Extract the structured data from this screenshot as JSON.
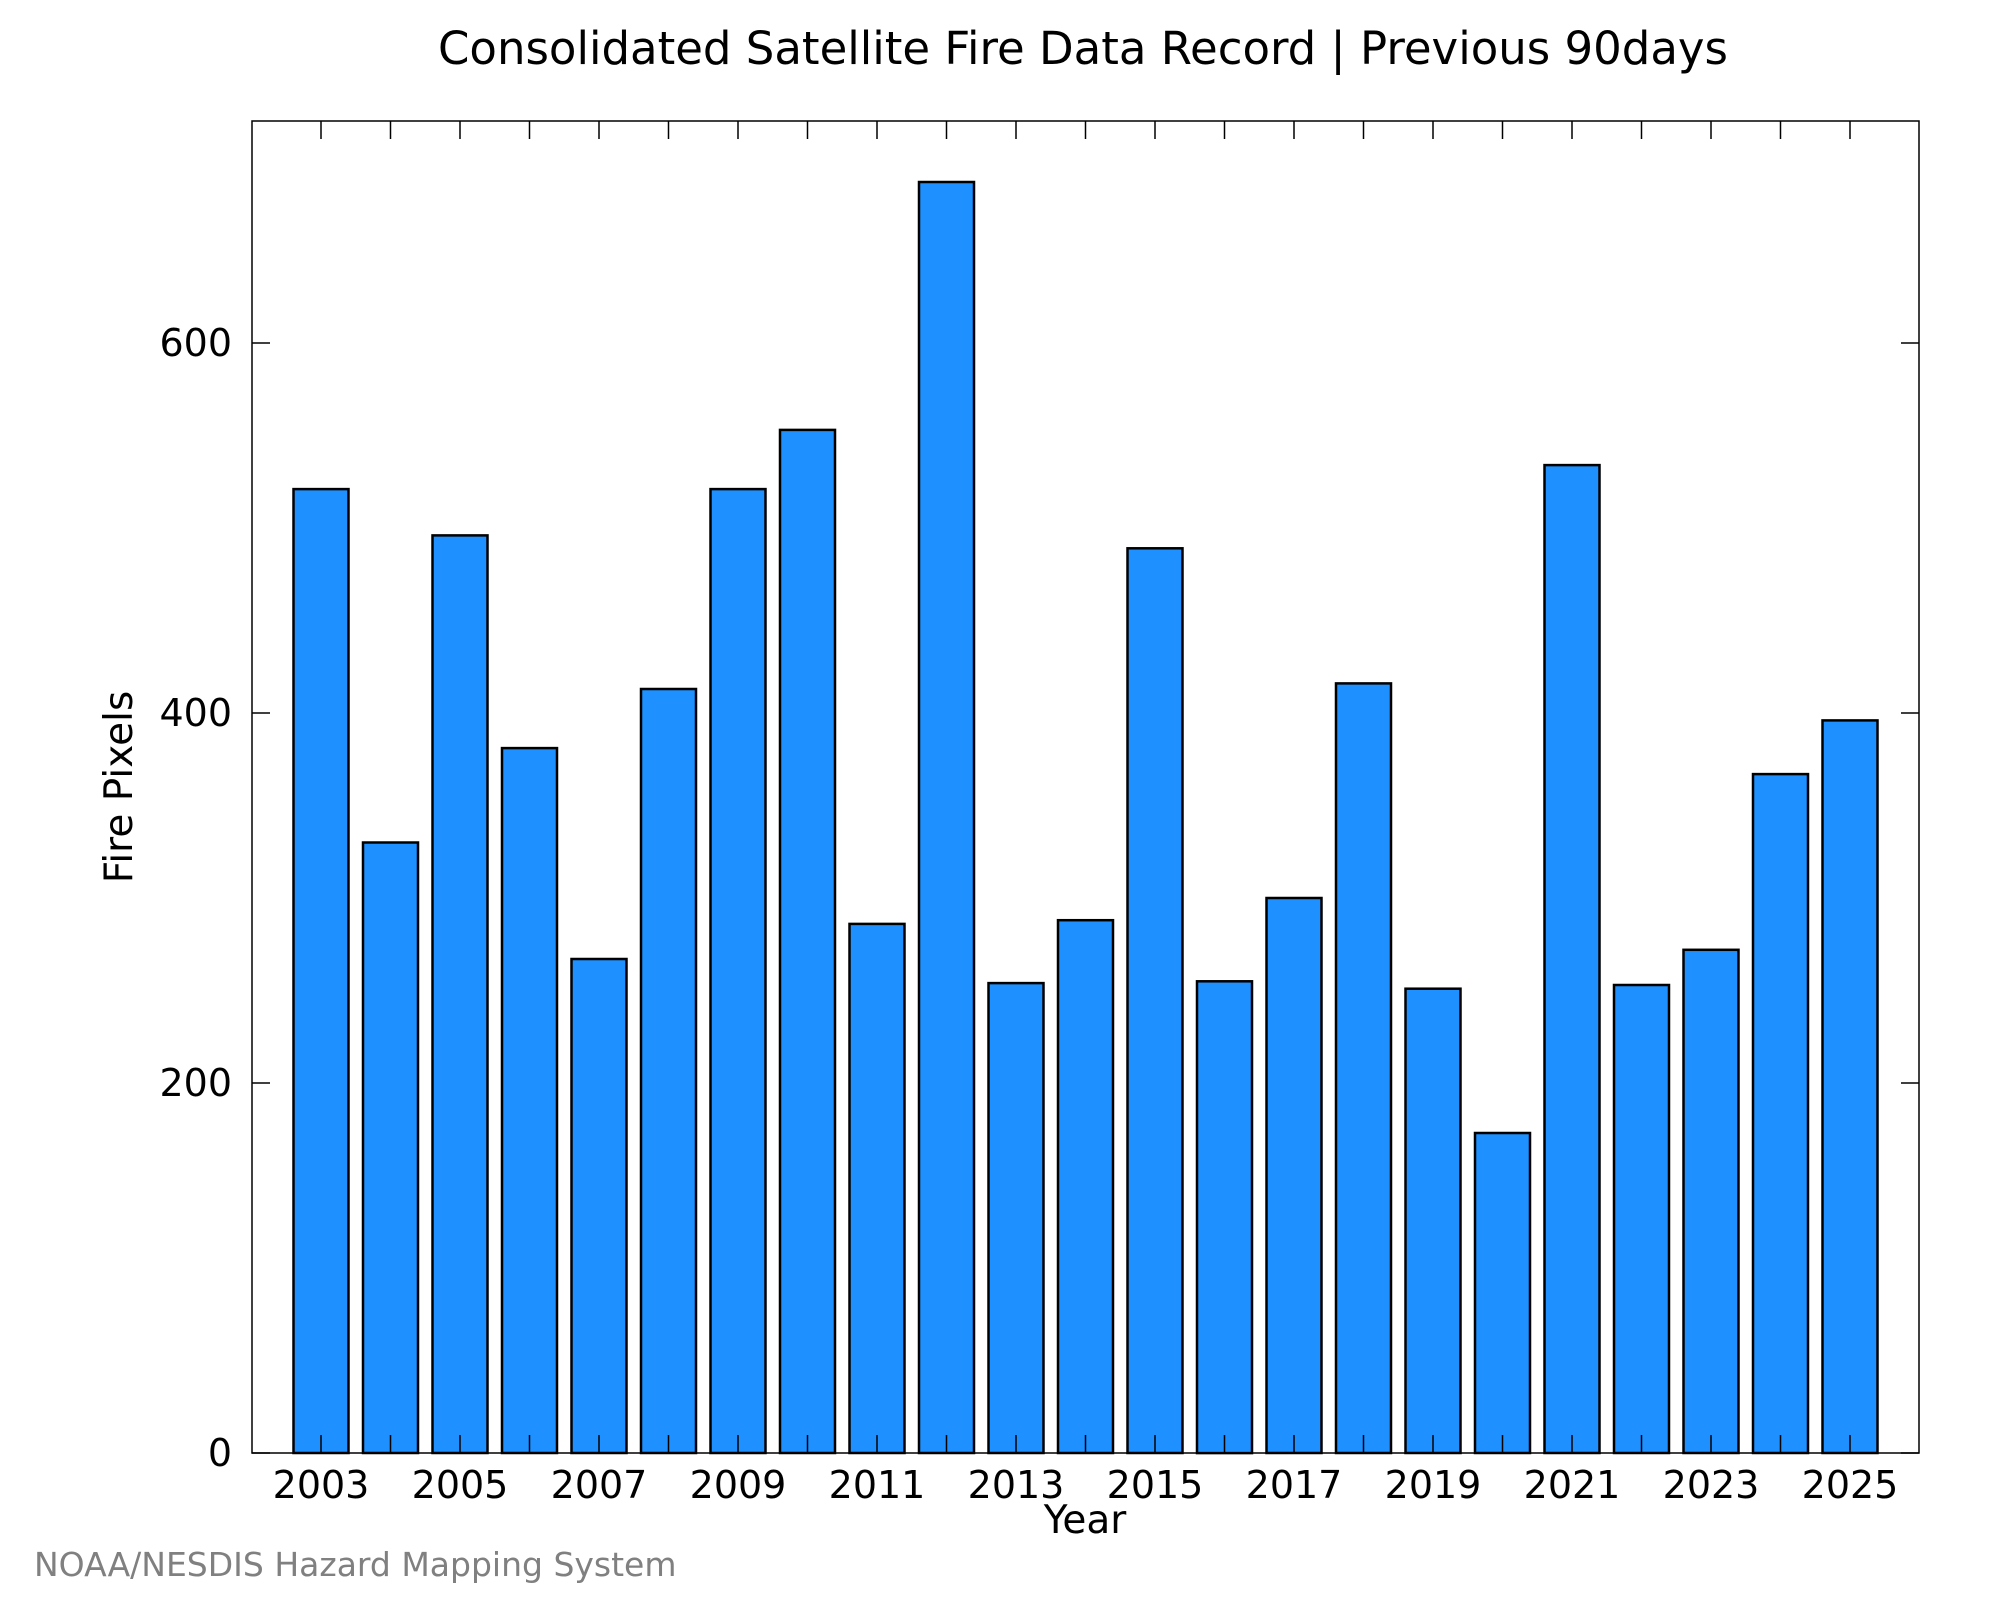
{
  "chart_data": {
    "type": "bar",
    "title": "Consolidated Satellite Fire Data Record | Previous 90days",
    "xlabel": "Year",
    "ylabel": "Fire Pixels",
    "credit": "NOAA/NESDIS Hazard Mapping System",
    "categories": [
      2003,
      2004,
      2005,
      2006,
      2007,
      2008,
      2009,
      2010,
      2011,
      2012,
      2013,
      2014,
      2015,
      2016,
      2017,
      2018,
      2019,
      2020,
      2021,
      2022,
      2023,
      2024,
      2025
    ],
    "values": [
      521,
      330,
      496,
      381,
      267,
      413,
      521,
      553,
      286,
      687,
      254,
      288,
      489,
      255,
      300,
      416,
      251,
      173,
      534,
      253,
      272,
      367,
      396
    ],
    "xticks": [
      "2003",
      "2005",
      "2007",
      "2009",
      "2011",
      "2013",
      "2015",
      "2017",
      "2019",
      "2021",
      "2023",
      "2025"
    ],
    "yticks": [
      "0",
      "200",
      "400",
      "600"
    ],
    "ylim": [
      0,
      720
    ],
    "grid": false,
    "bar_color": "#1E90FF"
  }
}
